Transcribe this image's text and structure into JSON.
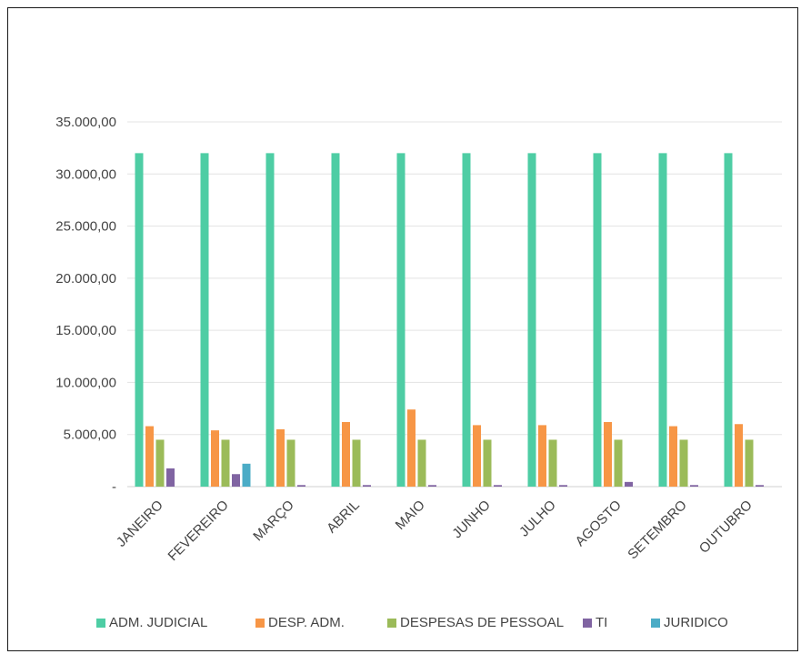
{
  "chart_data": {
    "type": "bar",
    "title": "",
    "xlabel": "",
    "ylabel": "",
    "ylim": [
      0,
      35000
    ],
    "yticks": [
      {
        "value": 0,
        "label": "-"
      },
      {
        "value": 5000,
        "label": "5.000,00"
      },
      {
        "value": 10000,
        "label": "10.000,00"
      },
      {
        "value": 15000,
        "label": "15.000,00"
      },
      {
        "value": 20000,
        "label": "20.000,00"
      },
      {
        "value": 25000,
        "label": "25.000,00"
      },
      {
        "value": 30000,
        "label": "30.000,00"
      },
      {
        "value": 35000,
        "label": "35.000,00"
      }
    ],
    "categories": [
      "JANEIRO",
      "FEVEREIRO",
      "MARÇO",
      "ABRIL",
      "MAIO",
      "JUNHO",
      "JULHO",
      "AGOSTO",
      "SETEMBRO",
      "OUTUBRO"
    ],
    "series": [
      {
        "name": "ADM. JUDICIAL",
        "color": "#4ECDA4",
        "values": [
          32000,
          32000,
          32000,
          32000,
          32000,
          32000,
          32000,
          32000,
          32000,
          32000
        ]
      },
      {
        "name": "DESP. ADM.",
        "color": "#F79646",
        "values": [
          5800,
          5400,
          5500,
          6200,
          7400,
          5900,
          5900,
          6200,
          5800,
          6000
        ]
      },
      {
        "name": "DESPESAS DE PESSOAL",
        "color": "#9BBB59",
        "values": [
          4500,
          4500,
          4500,
          4500,
          4500,
          4500,
          4500,
          4500,
          4500,
          4500
        ]
      },
      {
        "name": "TI",
        "color": "#8064A2",
        "values": [
          1750,
          1200,
          150,
          150,
          150,
          150,
          150,
          450,
          150,
          150
        ]
      },
      {
        "name": "JURIDICO",
        "color": "#4BACC6",
        "values": [
          0,
          2200,
          0,
          0,
          0,
          0,
          0,
          0,
          0,
          0
        ]
      }
    ],
    "grid": true,
    "legend_position": "bottom"
  }
}
